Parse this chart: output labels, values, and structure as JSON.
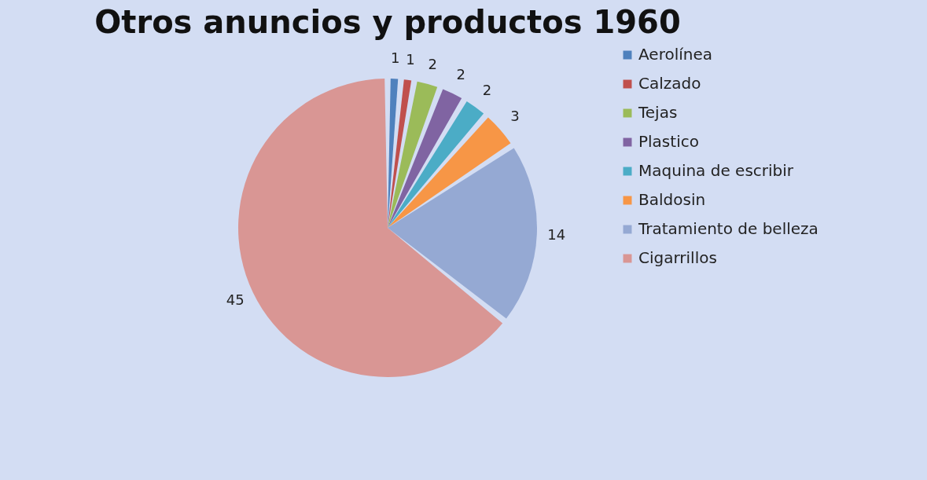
{
  "chart_data": {
    "type": "pie",
    "title": "Otros anuncios y productos 1960",
    "categories": [
      "Aerolínea",
      "Calzado",
      "Tejas",
      "Plastico",
      "Maquina de escribir",
      "Baldosin",
      "Tratamiento de belleza",
      "Cigarrillos"
    ],
    "values": [
      1,
      1,
      2,
      2,
      2,
      3,
      14,
      45
    ],
    "colors": [
      "#4f81bd",
      "#c0504d",
      "#9bbb59",
      "#8064a2",
      "#4bacc6",
      "#f79646",
      "#95a9d3",
      "#d99694"
    ],
    "data_labels": true,
    "legend": "right"
  }
}
